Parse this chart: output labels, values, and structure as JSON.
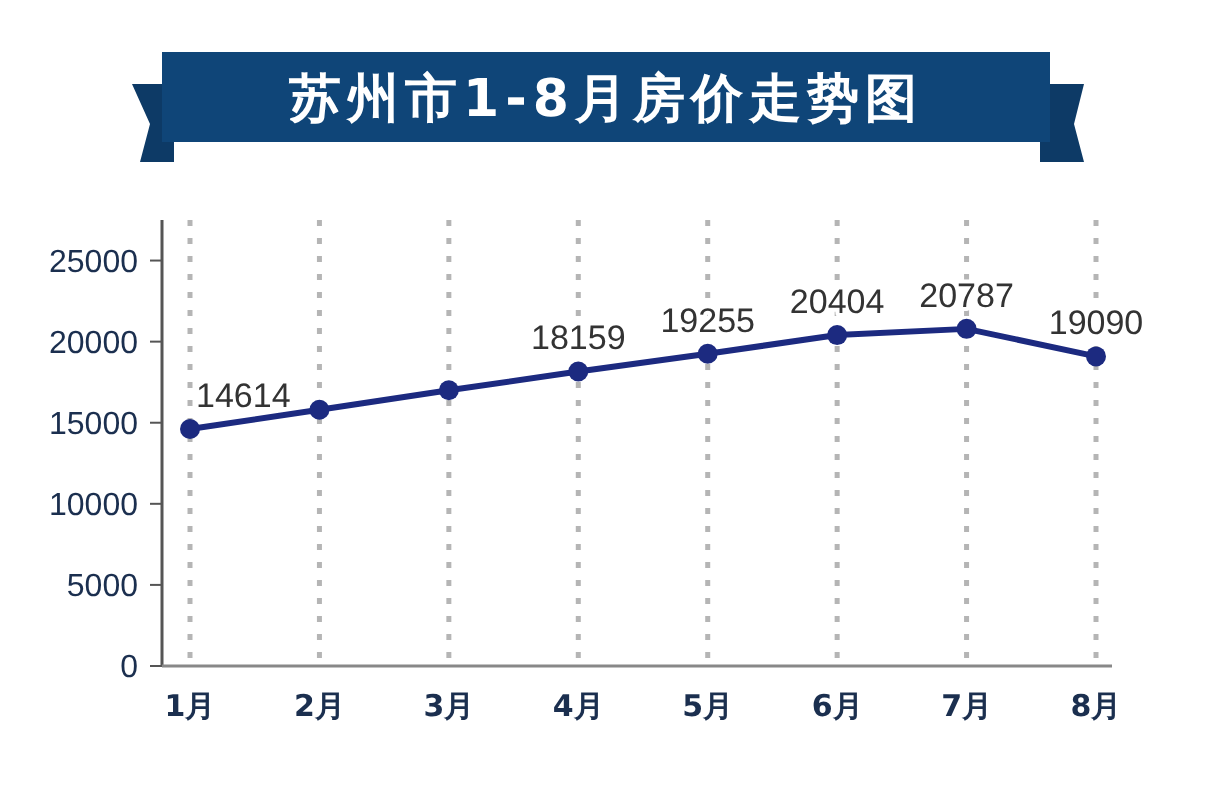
{
  "chart_data": {
    "type": "line",
    "title": "苏州市1-8月房价走势图",
    "categories": [
      "1月",
      "2月",
      "3月",
      "4月",
      "5月",
      "6月",
      "7月",
      "8月"
    ],
    "values": [
      14614,
      15800,
      17000,
      18159,
      19255,
      20404,
      20787,
      19090
    ],
    "value_labels": [
      "14614",
      null,
      null,
      "18159",
      "19255",
      "20404",
      "20787",
      "19090"
    ],
    "color": "#1c2a80",
    "marker": "circle",
    "ylim": [
      0,
      27500
    ],
    "yticks": [
      0,
      5000,
      10000,
      15000,
      20000,
      25000
    ],
    "grid": "x"
  }
}
